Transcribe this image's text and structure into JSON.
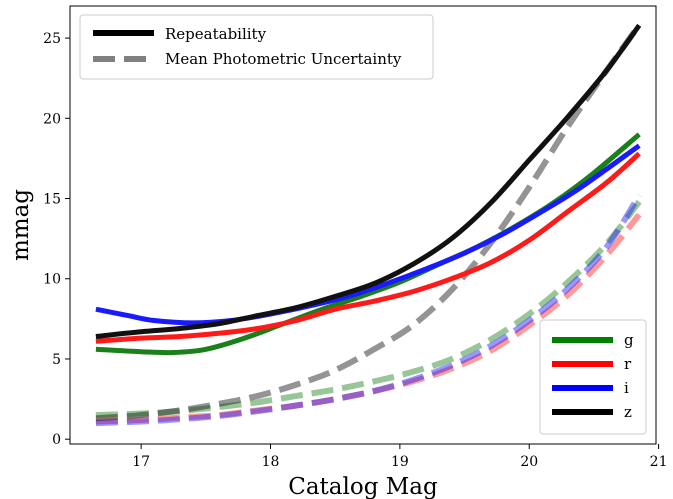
{
  "chart_data": {
    "type": "line",
    "xlabel": "Catalog Mag",
    "ylabel": "mmag",
    "xlim": [
      16.45,
      20.98
    ],
    "ylim": [
      -0.3,
      27.0
    ],
    "xticks": [
      17,
      18,
      19,
      20,
      21
    ],
    "yticks": [
      0,
      5,
      10,
      15,
      20,
      25
    ],
    "grid": false,
    "style_legend": {
      "placement": "top-left",
      "entries": [
        {
          "label": "Repeatability",
          "style": "solid",
          "color": "#000000"
        },
        {
          "label": "Mean Photometric Uncertainty",
          "style": "dashed",
          "color": "#808080"
        }
      ]
    },
    "band_legend": {
      "placement": "bottom-right",
      "entries": [
        {
          "label": "g",
          "color": "#008000"
        },
        {
          "label": "r",
          "color": "#ff0000"
        },
        {
          "label": "i",
          "color": "#0000ff"
        },
        {
          "label": "z",
          "color": "#000000"
        }
      ]
    },
    "series": [
      {
        "name": "g",
        "kind": "repeatability",
        "color": "#1a801a",
        "x": [
          16.65,
          17.0,
          17.25,
          17.5,
          17.8,
          18.1,
          18.4,
          18.7,
          19.0,
          19.3,
          19.6,
          19.9,
          20.2,
          20.5,
          20.85
        ],
        "y": [
          5.6,
          5.45,
          5.4,
          5.6,
          6.3,
          7.2,
          8.1,
          8.9,
          9.8,
          10.9,
          12.0,
          13.3,
          14.8,
          16.6,
          19.0
        ]
      },
      {
        "name": "r",
        "kind": "repeatability",
        "color": "#ff1a1a",
        "x": [
          16.65,
          17.0,
          17.3,
          17.6,
          17.9,
          18.2,
          18.5,
          18.8,
          19.1,
          19.4,
          19.7,
          20.0,
          20.3,
          20.6,
          20.85
        ],
        "y": [
          6.1,
          6.3,
          6.4,
          6.6,
          6.9,
          7.4,
          8.1,
          8.6,
          9.2,
          10.0,
          11.0,
          12.4,
          14.2,
          16.0,
          17.8
        ]
      },
      {
        "name": "i",
        "kind": "repeatability",
        "color": "#1a1aff",
        "x": [
          16.65,
          16.9,
          17.1,
          17.4,
          17.7,
          18.0,
          18.3,
          18.6,
          18.9,
          19.2,
          19.5,
          19.8,
          20.1,
          20.4,
          20.85
        ],
        "y": [
          8.1,
          7.7,
          7.4,
          7.25,
          7.4,
          7.8,
          8.3,
          8.9,
          9.7,
          10.6,
          11.6,
          12.8,
          14.2,
          15.7,
          18.3
        ]
      },
      {
        "name": "z",
        "kind": "repeatability",
        "color": "#111111",
        "x": [
          16.65,
          17.0,
          17.3,
          17.6,
          17.9,
          18.2,
          18.5,
          18.8,
          19.1,
          19.4,
          19.7,
          20.0,
          20.3,
          20.6,
          20.85
        ],
        "y": [
          6.4,
          6.7,
          6.9,
          7.2,
          7.7,
          8.2,
          8.9,
          9.7,
          10.9,
          12.5,
          14.7,
          17.4,
          20.1,
          23.0,
          25.8
        ]
      },
      {
        "name": "g",
        "kind": "uncertainty",
        "color": "#1a801a",
        "x": [
          16.65,
          17.0,
          17.3,
          17.6,
          17.9,
          18.2,
          18.5,
          18.8,
          19.1,
          19.4,
          19.7,
          20.0,
          20.3,
          20.6,
          20.85
        ],
        "y": [
          1.5,
          1.6,
          1.75,
          2.0,
          2.3,
          2.7,
          3.1,
          3.6,
          4.2,
          5.0,
          6.2,
          7.8,
          9.8,
          12.2,
          14.8
        ]
      },
      {
        "name": "r",
        "kind": "uncertainty",
        "color": "#ff1a1a",
        "x": [
          16.65,
          17.0,
          17.3,
          17.6,
          17.9,
          18.2,
          18.5,
          18.8,
          19.1,
          19.4,
          19.7,
          20.0,
          20.3,
          20.6,
          20.85
        ],
        "y": [
          1.1,
          1.2,
          1.35,
          1.5,
          1.8,
          2.1,
          2.5,
          3.0,
          3.6,
          4.4,
          5.5,
          7.1,
          9.0,
          11.5,
          14.0
        ]
      },
      {
        "name": "i",
        "kind": "uncertainty",
        "color": "#1a1aff",
        "x": [
          16.65,
          17.0,
          17.3,
          17.6,
          17.9,
          18.2,
          18.5,
          18.8,
          19.1,
          19.4,
          19.7,
          20.0,
          20.3,
          20.6,
          20.85
        ],
        "y": [
          1.0,
          1.1,
          1.25,
          1.45,
          1.75,
          2.1,
          2.5,
          3.0,
          3.7,
          4.6,
          5.8,
          7.4,
          9.4,
          12.0,
          15.2
        ]
      },
      {
        "name": "z",
        "kind": "uncertainty",
        "color": "#111111",
        "x": [
          16.65,
          17.0,
          17.3,
          17.6,
          17.9,
          18.2,
          18.5,
          18.8,
          19.1,
          19.4,
          19.7,
          20.0,
          20.3,
          20.6,
          20.85
        ],
        "y": [
          1.3,
          1.5,
          1.8,
          2.2,
          2.7,
          3.4,
          4.3,
          5.6,
          7.1,
          9.3,
          12.2,
          15.7,
          19.5,
          23.0,
          25.8
        ]
      }
    ]
  }
}
